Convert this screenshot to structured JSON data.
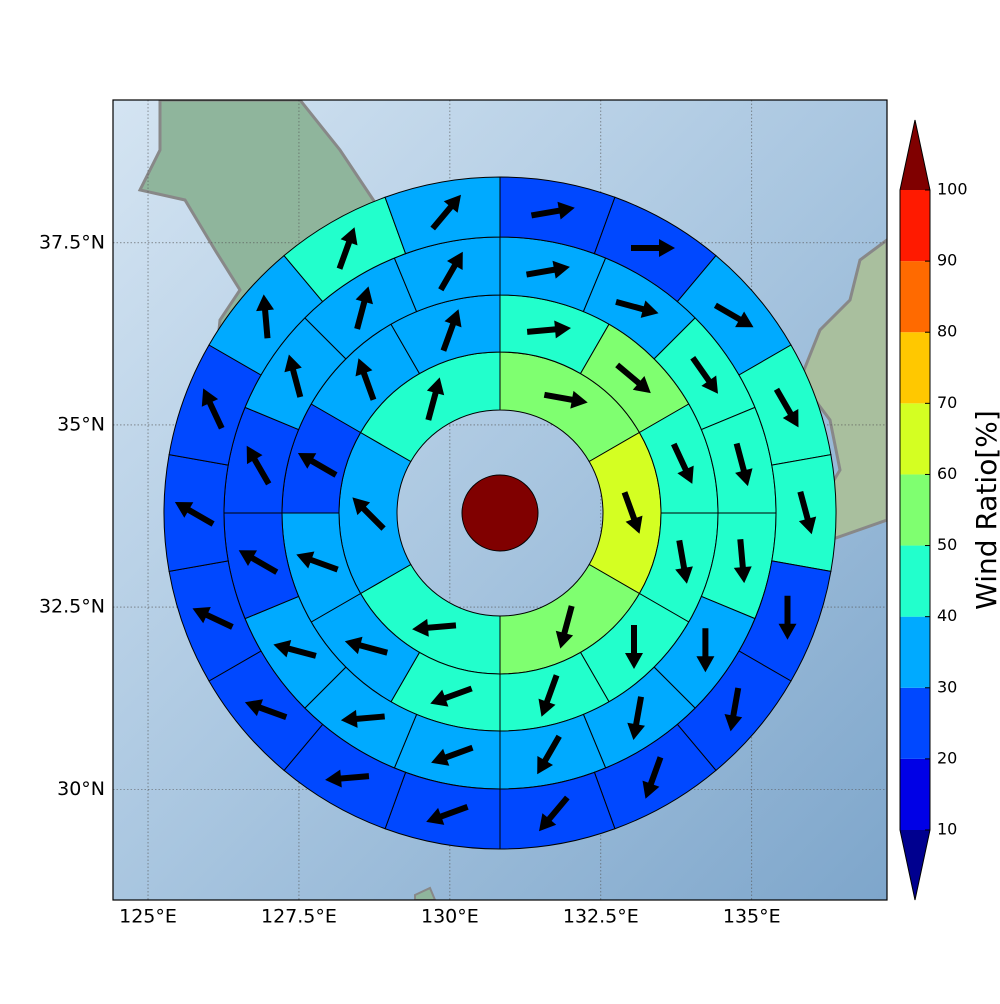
{
  "map": {
    "xlim": [
      124.42,
      137.24
    ],
    "ylim": [
      28.48,
      39.46
    ],
    "lon_ticks": [
      {
        "value": 125,
        "label": "125°E"
      },
      {
        "value": 127.5,
        "label": "127.5°E"
      },
      {
        "value": 130,
        "label": "130°E"
      },
      {
        "value": 132.5,
        "label": "132.5°E"
      },
      {
        "value": 135,
        "label": "135°E"
      }
    ],
    "lat_ticks": [
      {
        "value": 30,
        "label": "30°N"
      },
      {
        "value": 32.5,
        "label": "32.5°N"
      },
      {
        "value": 35,
        "label": "35°N"
      },
      {
        "value": 37.5,
        "label": "37.5°N"
      }
    ],
    "center": {
      "value": 105
    },
    "rings": [
      {
        "values": [
          55,
          65,
          55,
          45,
          35,
          45
        ],
        "directions": [
          100,
          160,
          195,
          265,
          315,
          15
        ]
      },
      {
        "values": [
          45,
          55,
          45,
          45,
          45,
          45,
          45,
          35,
          35,
          25,
          35,
          35
        ],
        "directions": [
          85,
          130,
          155,
          170,
          180,
          200,
          250,
          285,
          290,
          300,
          340,
          20
        ]
      },
      {
        "values": [
          35,
          35,
          45,
          45,
          45,
          35,
          35,
          35,
          35,
          35,
          35,
          25,
          25,
          35,
          35,
          35
        ],
        "directions": [
          80,
          105,
          145,
          165,
          175,
          180,
          190,
          210,
          250,
          265,
          285,
          300,
          330,
          345,
          15,
          30
        ]
      },
      {
        "values": [
          25,
          25,
          35,
          45,
          45,
          25,
          25,
          25,
          25,
          25,
          25,
          25,
          25,
          25,
          25,
          35,
          45,
          35
        ],
        "directions": [
          80,
          90,
          120,
          150,
          165,
          180,
          190,
          200,
          220,
          250,
          265,
          290,
          295,
          300,
          335,
          355,
          20,
          40
        ]
      },
      {
        "values": [
          35,
          25,
          25,
          35,
          35,
          35,
          25,
          15,
          25,
          25,
          25,
          25,
          25,
          25,
          25,
          35,
          45,
          35
        ],
        "directions": [
          80,
          85,
          110,
          145,
          165,
          175,
          180,
          205,
          225,
          250,
          270,
          285,
          290,
          305,
          330,
          350,
          20,
          45
        ]
      }
    ]
  },
  "colorbar": {
    "label": "Wind Ratio[%]",
    "levels": [
      10,
      20,
      30,
      40,
      50,
      60,
      70,
      80,
      90,
      100
    ],
    "colors": [
      "#0000e6",
      "#0048ff",
      "#00aaff",
      "#22ffcc",
      "#7fff70",
      "#d4ff22",
      "#ffc800",
      "#ff6a00",
      "#ff1a00"
    ],
    "under_color": "#00008f",
    "over_color": "#800000"
  }
}
